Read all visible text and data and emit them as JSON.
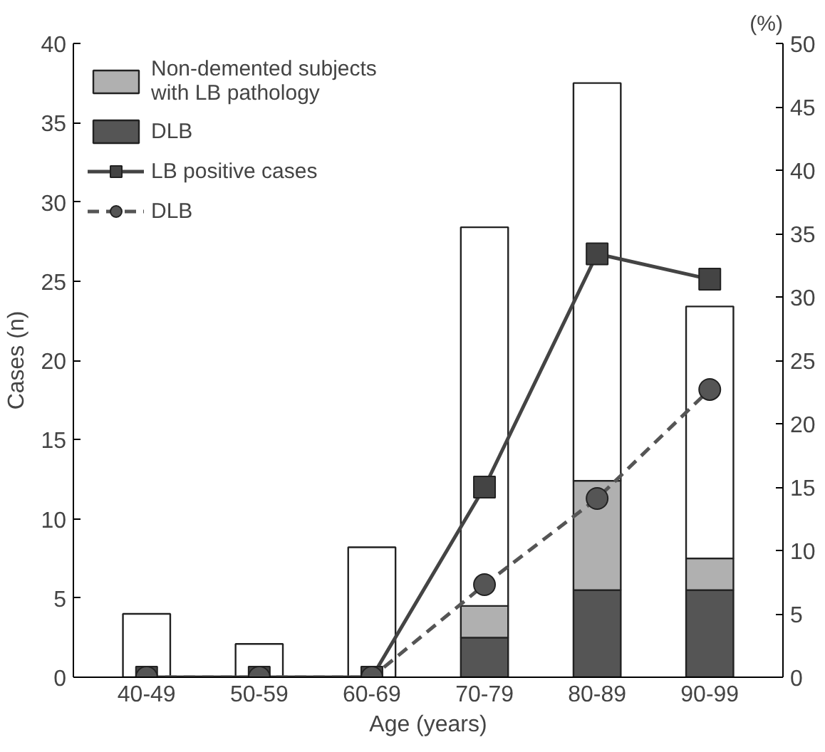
{
  "chart_data": {
    "type": "bar",
    "stacked": true,
    "xlabel": "Age (years)",
    "ylabel": "Cases (n)",
    "y2label": "(%)",
    "categories": [
      "40-49",
      "50-59",
      "60-69",
      "70-79",
      "80-89",
      "90-99"
    ],
    "series": [
      {
        "name": "DLB",
        "color": "#555555",
        "values": [
          0,
          0,
          0,
          2.5,
          5.5,
          5.5
        ]
      },
      {
        "name": "Non-demented subjects\nwith LB pathology",
        "color": "#b0b0b0",
        "values": [
          0,
          0,
          0,
          2.0,
          6.9,
          2.0
        ]
      },
      {
        "color": "#ffffff",
        "values": [
          4.0,
          2.1,
          8.2,
          23.9,
          25.1,
          15.9
        ]
      },
      {
        "type": "line",
        "axis": "y2",
        "name": "LB positive cases",
        "color": "#444444",
        "marker": "square",
        "line_style": "solid",
        "values": [
          0,
          0,
          0,
          15.0,
          33.4,
          31.4
        ]
      },
      {
        "type": "line",
        "axis": "y2",
        "name": "DLB",
        "color": "#555555",
        "marker": "circle",
        "line_style": "dashed",
        "values": [
          0,
          0,
          0,
          7.3,
          14.1,
          22.7
        ]
      }
    ],
    "ylim": [
      0,
      40
    ],
    "yticks": [
      0,
      5,
      10,
      15,
      20,
      25,
      30,
      35,
      40
    ],
    "y2lim": [
      0,
      50
    ],
    "y2ticks": [
      0,
      5,
      10,
      15,
      20,
      25,
      30,
      35,
      40,
      45,
      50
    ],
    "legend": "top left",
    "grid": false
  }
}
